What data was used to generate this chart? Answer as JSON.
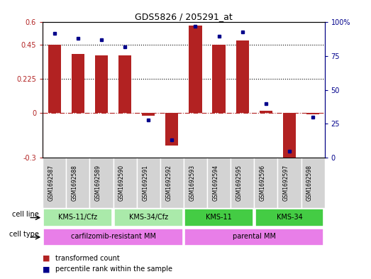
{
  "title": "GDS5826 / 205291_at",
  "samples": [
    "GSM1692587",
    "GSM1692588",
    "GSM1692589",
    "GSM1692590",
    "GSM1692591",
    "GSM1692592",
    "GSM1692593",
    "GSM1692594",
    "GSM1692595",
    "GSM1692596",
    "GSM1692597",
    "GSM1692598"
  ],
  "transformed_count": [
    0.45,
    0.39,
    0.38,
    0.38,
    -0.02,
    -0.22,
    0.58,
    0.45,
    0.48,
    0.01,
    -0.3,
    -0.01
  ],
  "percentile_rank": [
    92,
    88,
    87,
    82,
    28,
    13,
    97,
    90,
    93,
    40,
    5,
    30
  ],
  "bar_color": "#b22222",
  "dot_color": "#00008b",
  "zero_line_color": "#b22222",
  "grid_color": "black",
  "ylim_left": [
    -0.3,
    0.6
  ],
  "ylim_right": [
    0,
    100
  ],
  "yticks_left": [
    -0.3,
    0.0,
    0.225,
    0.45,
    0.6
  ],
  "yticks_right": [
    0,
    25,
    50,
    75,
    100
  ],
  "ytick_labels_left": [
    "-0.3",
    "0",
    "0.225",
    "0.45",
    "0.6"
  ],
  "ytick_labels_right": [
    "0",
    "25",
    "50",
    "75",
    "100%"
  ],
  "cell_lines": [
    {
      "label": "KMS-11/Cfz",
      "start": 0,
      "end": 3,
      "color": "#aaeaaa"
    },
    {
      "label": "KMS-34/Cfz",
      "start": 3,
      "end": 6,
      "color": "#aaeaaa"
    },
    {
      "label": "KMS-11",
      "start": 6,
      "end": 9,
      "color": "#44cc44"
    },
    {
      "label": "KMS-34",
      "start": 9,
      "end": 12,
      "color": "#44cc44"
    }
  ],
  "cell_types": [
    {
      "label": "carfilzomib-resistant MM",
      "start": 0,
      "end": 6,
      "color": "#e87ee8"
    },
    {
      "label": "parental MM",
      "start": 6,
      "end": 12,
      "color": "#e87ee8"
    }
  ],
  "sample_box_color": "#d3d3d3",
  "legend_items": [
    {
      "label": "transformed count",
      "color": "#b22222"
    },
    {
      "label": "percentile rank within the sample",
      "color": "#00008b"
    }
  ]
}
